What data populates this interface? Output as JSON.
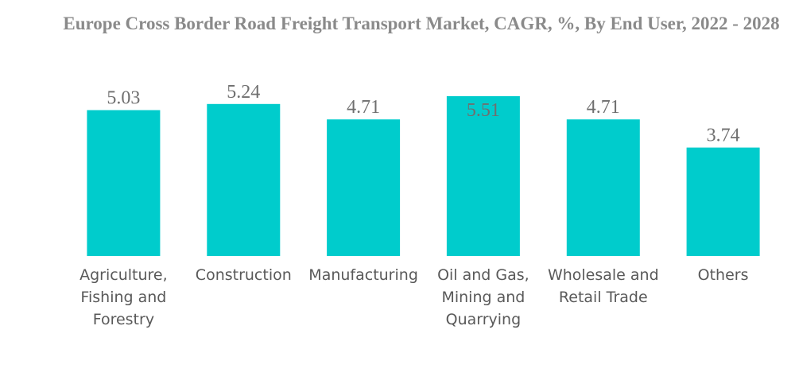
{
  "chart_data": {
    "type": "bar",
    "title": "Europe Cross Border Road Freight Transport Market, CAGR, %, By End User, 2022 - 2028",
    "categories": [
      "Agriculture, Fishing and Forestry",
      "Construction",
      "Manufacturing",
      "Oil and Gas, Mining and Quarrying",
      "Wholesale and Retail Trade",
      "Others"
    ],
    "category_lines": [
      [
        "Agriculture,",
        "Fishing and",
        "Forestry"
      ],
      [
        "Construction"
      ],
      [
        "Manufacturing"
      ],
      [
        "Oil and Gas,",
        "Mining and",
        "Quarrying"
      ],
      [
        "Wholesale and",
        "Retail Trade"
      ],
      [
        "Others"
      ]
    ],
    "values": [
      5.03,
      5.24,
      4.71,
      5.51,
      4.71,
      3.74
    ],
    "value_labels": [
      "5.03",
      "5.24",
      "4.71",
      "5.51",
      "4.71",
      "3.74"
    ],
    "ylim": [
      0,
      5.51
    ],
    "grid": false,
    "legend": "none",
    "bar_color": "#00CCCC"
  }
}
